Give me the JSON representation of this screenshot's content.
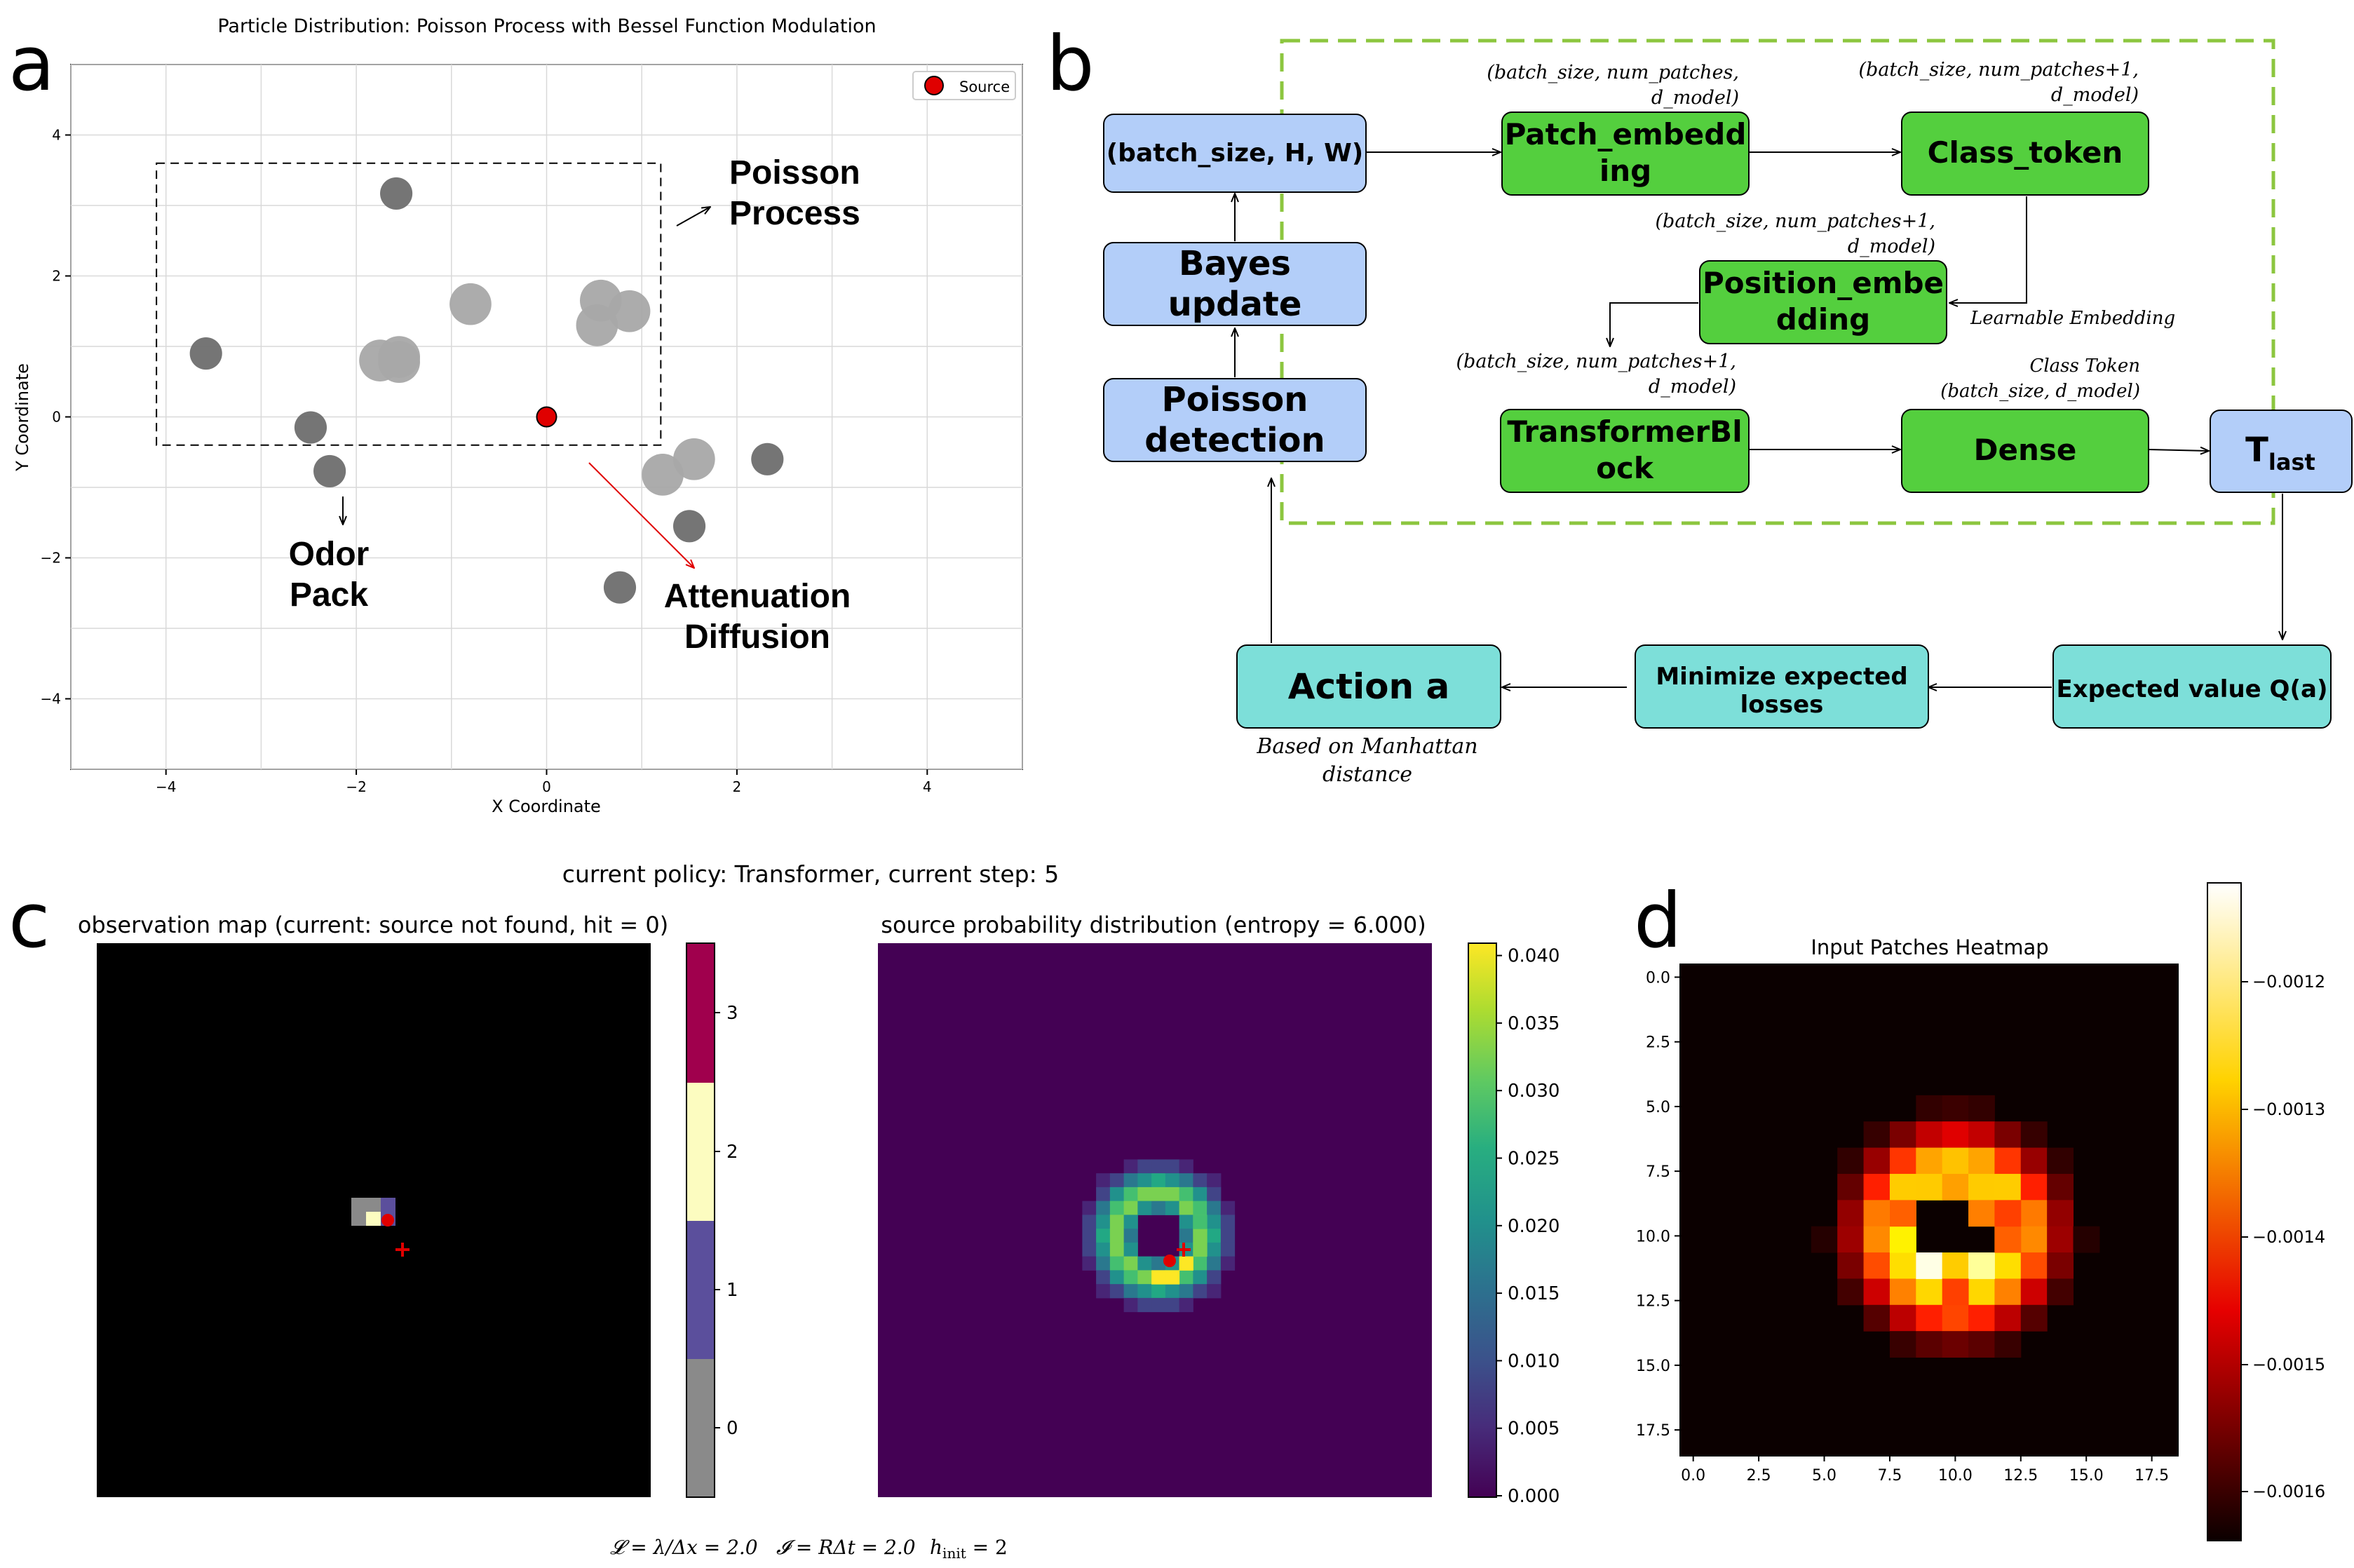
{
  "panel_letters": {
    "a": "a",
    "b": "b",
    "c": "c",
    "d": "d"
  },
  "chart_data": [
    {
      "type": "scatter",
      "title": "Particle Distribution: Poisson Process with Bessel Function Modulation",
      "xlabel": "X Coordinate",
      "ylabel": "Y Coordinate",
      "xlim": [
        -5,
        5
      ],
      "ylim": [
        -5,
        5
      ],
      "xticks": [
        -4,
        -2,
        0,
        2,
        4
      ],
      "yticks": [
        -4,
        -2,
        0,
        2,
        4
      ],
      "grid": true,
      "legend": {
        "placement": "top-right",
        "entries": [
          "Source"
        ]
      },
      "source": {
        "x": 0,
        "y": 0,
        "color": "#e00000"
      },
      "points": [
        {
          "x": -1.58,
          "y": 3.17,
          "size": 0.17,
          "shade": "#6e6e6e"
        },
        {
          "x": -3.58,
          "y": 0.9,
          "size": 0.17,
          "shade": "#6e6e6e"
        },
        {
          "x": -0.8,
          "y": 1.6,
          "size": 0.22,
          "shade": "#a8a8a8"
        },
        {
          "x": 0.57,
          "y": 1.65,
          "size": 0.22,
          "shade": "#a8a8a8"
        },
        {
          "x": 0.87,
          "y": 1.5,
          "size": 0.22,
          "shade": "#a8a8a8"
        },
        {
          "x": 0.53,
          "y": 1.3,
          "size": 0.22,
          "shade": "#a8a8a8"
        },
        {
          "x": -1.75,
          "y": 0.8,
          "size": 0.22,
          "shade": "#a8a8a8"
        },
        {
          "x": -1.55,
          "y": 0.85,
          "size": 0.22,
          "shade": "#a8a8a8"
        },
        {
          "x": -1.55,
          "y": 0.78,
          "size": 0.22,
          "shade": "#a8a8a8"
        },
        {
          "x": -2.48,
          "y": -0.15,
          "size": 0.17,
          "shade": "#6e6e6e"
        },
        {
          "x": -2.28,
          "y": -0.77,
          "size": 0.17,
          "shade": "#6e6e6e"
        },
        {
          "x": 1.55,
          "y": -0.6,
          "size": 0.22,
          "shade": "#a8a8a8"
        },
        {
          "x": 1.22,
          "y": -0.82,
          "size": 0.22,
          "shade": "#a8a8a8"
        },
        {
          "x": 2.32,
          "y": -0.6,
          "size": 0.17,
          "shade": "#6e6e6e"
        },
        {
          "x": 1.5,
          "y": -1.55,
          "size": 0.17,
          "shade": "#6e6e6e"
        },
        {
          "x": 0.77,
          "y": -2.42,
          "size": 0.17,
          "shade": "#6e6e6e"
        }
      ],
      "region": {
        "x0": -4.1,
        "x1": 1.2,
        "y0": -0.4,
        "y1": 3.6
      },
      "annotations": [
        {
          "id": "poisson",
          "lines": [
            "Poisson",
            "Process"
          ]
        },
        {
          "id": "odor",
          "lines": [
            "Odor",
            "Pack"
          ]
        },
        {
          "id": "attenuation",
          "lines": [
            "Attenuation",
            "Diffusion"
          ]
        }
      ]
    },
    {
      "type": "heatmap",
      "suptitle": "current policy: Transformer, current step: 5",
      "title": "observation map (current: source not found, hit = 0)",
      "colorbar": {
        "ticks": [
          "0",
          "1",
          "2",
          "3"
        ],
        "colors": [
          "#8a8a8a",
          "#5b4f9c",
          "#fcfcc0",
          "#a0004d"
        ]
      }
    },
    {
      "type": "heatmap",
      "title": "source probability distribution (entropy = 6.000)",
      "colorbar": {
        "ticks": [
          "0.000",
          "0.005",
          "0.010",
          "0.015",
          "0.020",
          "0.025",
          "0.030",
          "0.035",
          "0.040"
        ]
      }
    },
    {
      "type": "heatmap",
      "title": "Input Patches Heatmap",
      "xticks": [
        "0.0",
        "2.5",
        "5.0",
        "7.5",
        "10.0",
        "12.5",
        "15.0",
        "17.5"
      ],
      "yticks": [
        "0.0",
        "2.5",
        "5.0",
        "7.5",
        "10.0",
        "12.5",
        "15.0",
        "17.5"
      ],
      "colorbar": {
        "ticks": [
          "−0.0012",
          "−0.0013",
          "−0.0014",
          "−0.0015",
          "−0.0016"
        ]
      }
    }
  ],
  "params_line": {
    "L": "𝓛 = λ/Δx = 2.0",
    "I": "𝓘 = RΔt = 2.0",
    "h": "h",
    "h_sub": "init",
    "h_val": " = 2"
  },
  "diagram": {
    "nodes": {
      "input": "(batch_size, H, W)",
      "patch": [
        "Patch_embedd",
        "ing"
      ],
      "class_token": "Class_token",
      "bayes": [
        "Bayes",
        "update"
      ],
      "position": [
        "Position_embe",
        "dding"
      ],
      "poisson": [
        "Poisson",
        "detection"
      ],
      "transformer": [
        "TransformerBl",
        "ock"
      ],
      "dense": "Dense",
      "tlast": "T",
      "tlast_sub": "last",
      "action": "Action a",
      "minimize": [
        "Minimize expected",
        "losses"
      ],
      "expected": "Expected value Q(a)"
    },
    "labels": {
      "patch_shape": [
        "(batch_size, num_patches,",
        "d_model)"
      ],
      "class_shape": [
        "(batch_size, num_patches+1,",
        "d_model)"
      ],
      "pos_shape": [
        "(batch_size, num_patches+1,",
        "d_model)"
      ],
      "learnable": "Learnable Embedding",
      "trans_shape": [
        "(batch_size, num_patches+1,",
        "d_model)"
      ],
      "class_token_shape": [
        "Class Token",
        "(batch_size, d_model)"
      ],
      "manhattan": [
        "Based on Manhattan",
        "distance"
      ]
    }
  }
}
